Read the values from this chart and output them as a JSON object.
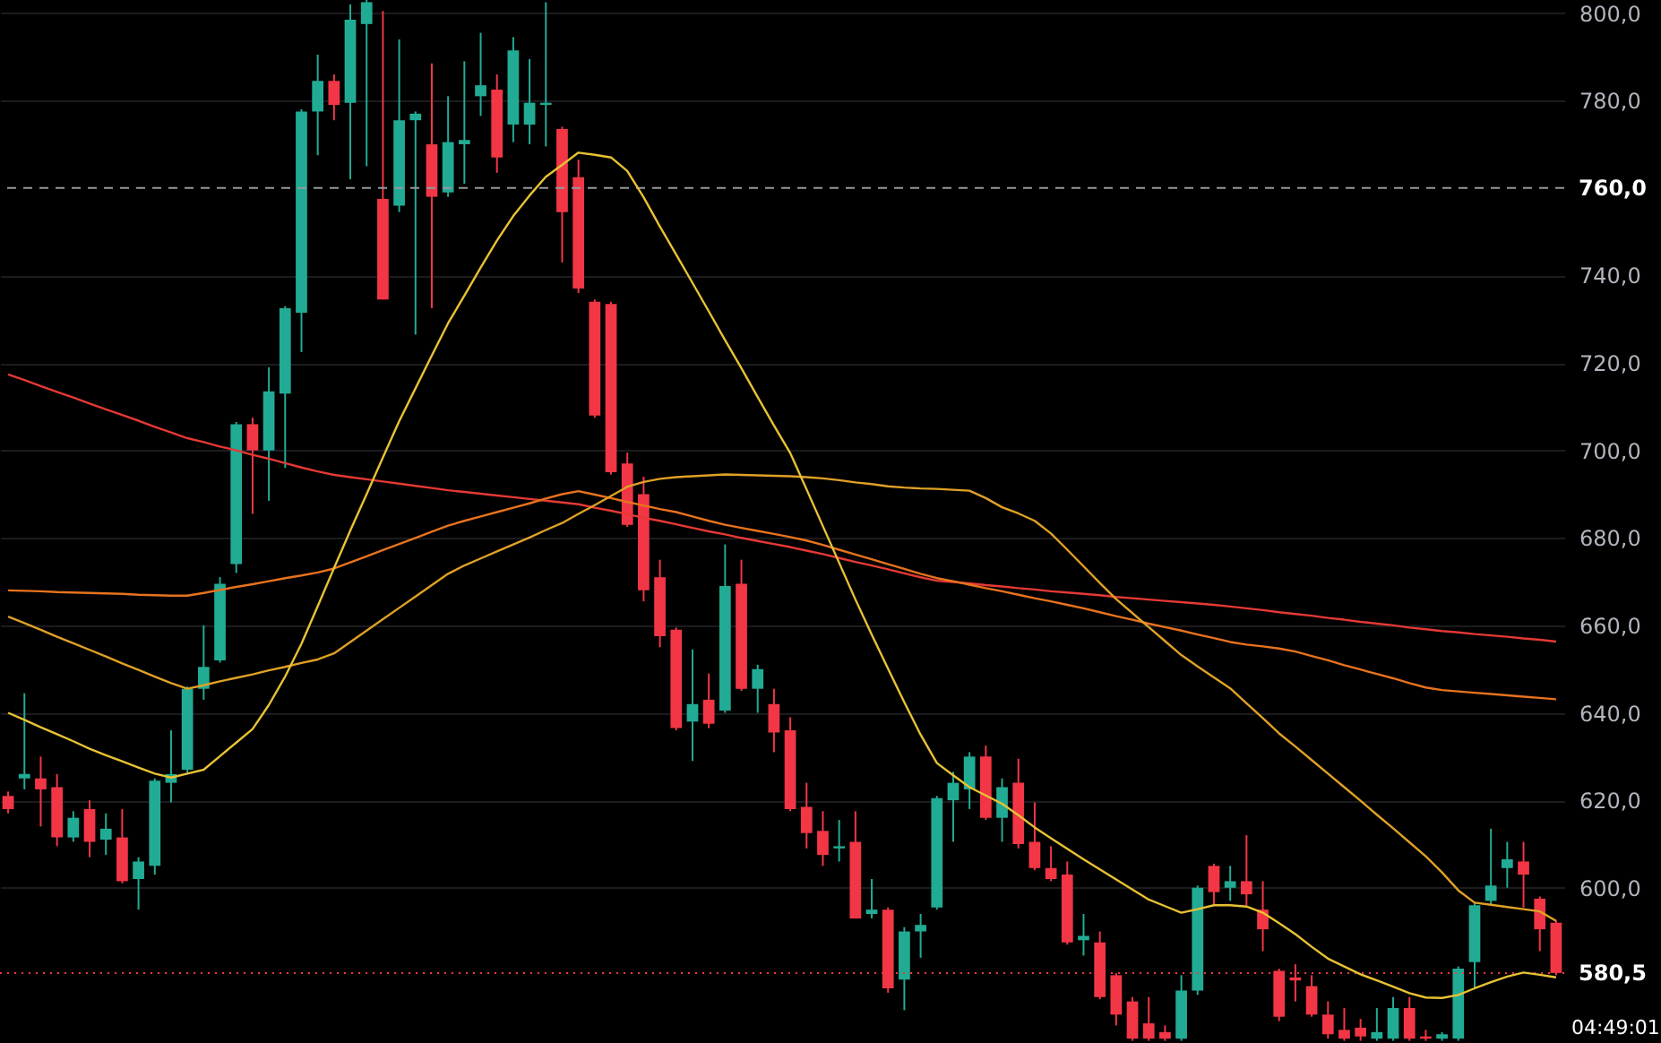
{
  "chart_data": {
    "type": "candlestick",
    "categories": [
      null,
      null,
      null,
      null,
      null,
      null,
      null,
      null,
      null,
      null,
      null,
      null,
      null,
      null,
      null,
      null,
      null,
      null,
      null,
      null,
      null,
      null,
      null,
      null,
      null,
      null,
      null,
      null,
      null,
      null,
      null,
      null,
      null,
      null,
      null,
      null,
      null,
      null,
      null,
      null,
      null,
      null,
      null,
      null,
      null,
      null,
      null,
      null,
      null,
      null,
      null,
      null,
      null,
      null,
      null,
      null,
      null,
      null,
      null,
      null,
      null,
      null,
      null,
      null,
      null,
      null,
      null,
      null,
      null,
      null,
      null,
      null,
      null,
      null,
      null,
      null,
      null,
      null,
      null,
      null,
      null,
      null,
      null,
      null,
      null,
      null,
      null,
      null,
      null,
      null,
      null,
      null,
      null,
      null,
      null,
      null
    ],
    "ohlc": [
      [
        621,
        622,
        617,
        618
      ],
      [
        625,
        644.5,
        622.5,
        626
      ],
      [
        625,
        630,
        614,
        622.5
      ],
      [
        623,
        626,
        609.5,
        611.5
      ],
      [
        611.5,
        617.5,
        610.5,
        616
      ],
      [
        618,
        620,
        607,
        610.5
      ],
      [
        611,
        617,
        607.5,
        613.5
      ],
      [
        611.5,
        618,
        601,
        601.5
      ],
      [
        602,
        607,
        595,
        606
      ],
      [
        605,
        625,
        603,
        624.5
      ],
      [
        624,
        636,
        619.5,
        626
      ],
      [
        627,
        646,
        626,
        645.5
      ],
      [
        645.5,
        660,
        643,
        650.5
      ],
      [
        652,
        671,
        651.5,
        669.5
      ],
      [
        674,
        706.5,
        672,
        706
      ],
      [
        706,
        707.5,
        685.5,
        700
      ],
      [
        700,
        719,
        688.5,
        713.5
      ],
      [
        713,
        733,
        696,
        732.5
      ],
      [
        731.5,
        778,
        722.5,
        777.5
      ],
      [
        777.5,
        790.5,
        767.5,
        784.5
      ],
      [
        784.5,
        786,
        775.5,
        779
      ],
      [
        779.5,
        802,
        762,
        798.5
      ],
      [
        797.5,
        803,
        765,
        802.5
      ],
      [
        757.5,
        800.5,
        734.5,
        734.5
      ],
      [
        756,
        794,
        754.5,
        775.5
      ],
      [
        775.5,
        777.5,
        726.5,
        777
      ],
      [
        770,
        788.5,
        732.5,
        758
      ],
      [
        759,
        781,
        758,
        770.5
      ],
      [
        770,
        789,
        761,
        771
      ],
      [
        781,
        795.5,
        776.5,
        783.5
      ],
      [
        782.5,
        786,
        763.5,
        767
      ],
      [
        774.5,
        794.5,
        770.5,
        791.5
      ],
      [
        774.5,
        789.5,
        770,
        779.5
      ],
      [
        779,
        802.5,
        769.5,
        779.5
      ],
      [
        773.5,
        774,
        743,
        754.5
      ],
      [
        762.5,
        766.5,
        736,
        737
      ],
      [
        734,
        734.5,
        707.5,
        708
      ],
      [
        733.5,
        734,
        694.5,
        695
      ],
      [
        697,
        699.5,
        682.5,
        683
      ],
      [
        690,
        694,
        665.5,
        668
      ],
      [
        671,
        675,
        655,
        657.5
      ],
      [
        659,
        659.5,
        636,
        636.5
      ],
      [
        638,
        654.5,
        629,
        642
      ],
      [
        643,
        649,
        636.5,
        637.5
      ],
      [
        640.5,
        678.5,
        640,
        669
      ],
      [
        669.5,
        675,
        645,
        645.5
      ],
      [
        645.5,
        651,
        640,
        650
      ],
      [
        642,
        645.5,
        631,
        635.5
      ],
      [
        636,
        639,
        617.5,
        618
      ],
      [
        618.5,
        624,
        609,
        612.5
      ],
      [
        613,
        617.5,
        605,
        607.5
      ],
      [
        609,
        615.5,
        606,
        609.5
      ],
      [
        610.5,
        617.5,
        593,
        593
      ],
      [
        594,
        602,
        593,
        595
      ],
      [
        595,
        595.5,
        576,
        577
      ],
      [
        579,
        591,
        572,
        590
      ],
      [
        590,
        594,
        584,
        591.5
      ],
      [
        595.5,
        621,
        595,
        620.5
      ],
      [
        620,
        626.5,
        610.5,
        624
      ],
      [
        622.5,
        631,
        618,
        630
      ],
      [
        630,
        632.5,
        615.5,
        616
      ],
      [
        616,
        625,
        610.5,
        623
      ],
      [
        624,
        629.5,
        609,
        610
      ],
      [
        610.5,
        619.5,
        604,
        604.5
      ],
      [
        604.5,
        609.5,
        601.5,
        602
      ],
      [
        603,
        606,
        587,
        587.5
      ],
      [
        588,
        594,
        584.5,
        589
      ],
      [
        587.5,
        590,
        574.5,
        575
      ],
      [
        580,
        580.5,
        568.5,
        571
      ],
      [
        574,
        575,
        565,
        565.5
      ],
      [
        569,
        575,
        565,
        565.5
      ],
      [
        567,
        568.5,
        565,
        565.5
      ],
      [
        565.5,
        580,
        565,
        576.5
      ],
      [
        576.5,
        600.5,
        575.5,
        600
      ],
      [
        605,
        605.5,
        596,
        599
      ],
      [
        600,
        605,
        597,
        601.5
      ],
      [
        601.5,
        612,
        596,
        598.5
      ],
      [
        595,
        601.5,
        585.5,
        590.5
      ],
      [
        581,
        581.5,
        569.5,
        570.5
      ],
      [
        579.5,
        582.5,
        574,
        578.8
      ],
      [
        577.5,
        580,
        570.5,
        571
      ],
      [
        571,
        574,
        565.5,
        566.5
      ],
      [
        567.5,
        572.5,
        565,
        565.5
      ],
      [
        568,
        570,
        565,
        566
      ],
      [
        565.5,
        572.5,
        565,
        567
      ],
      [
        565.5,
        575,
        565,
        572.5
      ],
      [
        572.5,
        575,
        565,
        565.5
      ],
      [
        566,
        567.5,
        565,
        565.5
      ],
      [
        565.5,
        567,
        565,
        566.5
      ],
      [
        565.5,
        582,
        565,
        581.5
      ],
      [
        583,
        596.5,
        577,
        596
      ],
      [
        597,
        613.5,
        596,
        600.5
      ],
      [
        604.5,
        610.5,
        600,
        606.5
      ],
      [
        606,
        610.5,
        595.5,
        603
      ],
      [
        597.5,
        598,
        585.5,
        590.5
      ],
      [
        592,
        592.5,
        580,
        580.5
      ]
    ],
    "colors": [
      "#f23645",
      "#22ab94",
      "#f23645",
      "#f23645",
      "#22ab94",
      "#f23645",
      "#22ab94",
      "#f23645",
      "#22ab94",
      "#22ab94",
      "#22ab94",
      "#22ab94",
      "#22ab94",
      "#22ab94",
      "#22ab94",
      "#f23645",
      "#22ab94",
      "#22ab94",
      "#22ab94",
      "#22ab94",
      "#f23645",
      "#22ab94",
      "#22ab94",
      "#f23645",
      "#22ab94",
      "#22ab94",
      "#f23645",
      "#22ab94",
      "#22ab94",
      "#22ab94",
      "#f23645",
      "#22ab94",
      "#22ab94",
      "#22ab94",
      "#f23645",
      "#f23645",
      "#f23645",
      "#f23645",
      "#f23645",
      "#f23645",
      "#f23645",
      "#f23645",
      "#22ab94",
      "#f23645",
      "#22ab94",
      "#f23645",
      "#22ab94",
      "#f23645",
      "#f23645",
      "#f23645",
      "#f23645",
      "#22ab94",
      "#f23645",
      "#22ab94",
      "#f23645",
      "#22ab94",
      "#22ab94",
      "#22ab94",
      "#22ab94",
      "#22ab94",
      "#f23645",
      "#22ab94",
      "#f23645",
      "#f23645",
      "#f23645",
      "#f23645",
      "#22ab94",
      "#f23645",
      "#f23645",
      "#f23645",
      "#f23645",
      "#f23645",
      "#22ab94",
      "#22ab94",
      "#f23645",
      "#22ab94",
      "#f23645",
      "#f23645",
      "#f23645",
      "#f23645",
      "#f23645",
      "#f23645",
      "#f23645",
      "#f23645",
      "#22ab94",
      "#22ab94",
      "#f23645",
      "#f23645",
      "#22ab94",
      "#22ab94",
      "#22ab94",
      "#22ab94",
      "#22ab94",
      "#f23645",
      "#f23645",
      "#f23645"
    ],
    "series": [
      {
        "type": "line",
        "color": "#e53935",
        "values": [
          717.4,
          716.1,
          714.7,
          713.4,
          712.1,
          710.7,
          709.4,
          708.1,
          706.8,
          705.4,
          704.1,
          702.8,
          701.9,
          700.9,
          700,
          699,
          698.1,
          697.1,
          696.1,
          695.2,
          694.4,
          693.9,
          693.4,
          692.9,
          692.4,
          691.9,
          691.4,
          690.9,
          690.5,
          690.1,
          689.7,
          689.3,
          688.9,
          688.5,
          688.1,
          687.7,
          686.9,
          686.2,
          685.4,
          684.6,
          683.9,
          683.1,
          682.3,
          681.5,
          680.8,
          680,
          679.3,
          678.6,
          677.9,
          677.1,
          676.3,
          675.4,
          674.5,
          673.7,
          672.8,
          671.9,
          671,
          670.2,
          669.9,
          669.6,
          669.2,
          668.9,
          668.5,
          668.2,
          667.8,
          667.5,
          667.2,
          666.9,
          666.5,
          666.2,
          665.9,
          665.6,
          665.3,
          665,
          664.7,
          664.3,
          663.9,
          663.5,
          663,
          662.6,
          662.2,
          661.7,
          661.3,
          660.8,
          660.4,
          660,
          659.5,
          659.1,
          658.7,
          658.4,
          658,
          657.7,
          657.4,
          657,
          656.7,
          656.3
        ]
      },
      {
        "type": "line",
        "color": "#e8731e",
        "values": [
          668,
          667.9,
          667.8,
          667.6,
          667.5,
          667.4,
          667.3,
          667.2,
          667,
          666.9,
          666.8,
          666.8,
          667.4,
          668.1,
          668.8,
          669.4,
          670.1,
          670.8,
          671.4,
          672.1,
          673,
          674.4,
          675.8,
          677.2,
          678.6,
          680,
          681.4,
          682.8,
          683.9,
          684.9,
          685.9,
          686.9,
          687.9,
          689,
          690,
          690.7,
          689.9,
          689.1,
          688.2,
          687.4,
          686.6,
          685.9,
          684.9,
          683.9,
          683,
          682.3,
          681.6,
          680.9,
          680.2,
          679.4,
          678.4,
          677.3,
          676.2,
          675.1,
          674,
          672.9,
          671.8,
          670.8,
          670.1,
          669.3,
          668.5,
          667.8,
          667,
          666.2,
          665.5,
          664.7,
          663.9,
          663,
          662.1,
          661.3,
          660.4,
          659.6,
          658.8,
          657.9,
          657.1,
          656.2,
          655.6,
          655.2,
          654.7,
          654,
          653,
          652,
          650.9,
          649.9,
          648.9,
          647.9,
          646.8,
          645.8,
          645.2,
          644.9,
          644.6,
          644.3,
          644,
          643.7,
          643.4,
          643.1
        ]
      },
      {
        "type": "line",
        "color": "#e0a126",
        "values": [
          662,
          660.5,
          659,
          657.4,
          655.9,
          654.4,
          652.9,
          651.3,
          649.8,
          648.3,
          646.8,
          645.5,
          646.3,
          647.2,
          648,
          648.8,
          649.7,
          650.5,
          651.4,
          652.2,
          653.6,
          656.2,
          658.8,
          661.4,
          664,
          666.6,
          669.2,
          671.8,
          673.7,
          675.3,
          676.9,
          678.5,
          680.1,
          681.8,
          683.4,
          685.5,
          687.5,
          689.6,
          691.7,
          692.8,
          693.5,
          693.9,
          694.1,
          694.3,
          694.5,
          694.4,
          694.3,
          694.2,
          694.1,
          693.9,
          693.6,
          693.2,
          692.7,
          692.3,
          691.8,
          691.5,
          691.3,
          691.2,
          691,
          690.8,
          689.1,
          687,
          685.6,
          683.9,
          681,
          677.3,
          673.5,
          669.7,
          666,
          662.8,
          659.6,
          656.4,
          653.2,
          650.6,
          648.1,
          645.6,
          642.2,
          638.8,
          635.3,
          632.3,
          629.2,
          626.1,
          623,
          619.9,
          616.7,
          613.6,
          610.4,
          607.2,
          603.5,
          599.4,
          596.6,
          596.1,
          595.6,
          595.1,
          594.6,
          592.4
        ]
      },
      {
        "type": "line",
        "color": "#e8c234",
        "values": [
          640,
          638.4,
          636.7,
          635.1,
          633.5,
          631.8,
          630.3,
          628.9,
          627.5,
          626.1,
          625.2,
          626.1,
          627,
          630.1,
          633.2,
          636.3,
          641.8,
          648.3,
          655.8,
          664.4,
          673.1,
          681.7,
          690,
          698.4,
          706.7,
          714.2,
          721.7,
          729.1,
          735.4,
          741.8,
          748,
          753.6,
          758.3,
          762.6,
          765.3,
          768.1,
          767.6,
          767,
          763.9,
          757.9,
          751.2,
          744.8,
          738.3,
          731.8,
          725.2,
          718.8,
          712.2,
          705.7,
          699.4,
          691.1,
          682.7,
          674.3,
          665.9,
          657.9,
          650.1,
          642.4,
          635,
          628.5,
          625.7,
          623,
          621.1,
          619.2,
          616.6,
          613.8,
          611.3,
          608.9,
          606.5,
          604.2,
          601.9,
          599.6,
          597.3,
          595.8,
          594.3,
          595.1,
          596,
          596,
          595.7,
          594.3,
          591.9,
          589.4,
          586.5,
          583.8,
          582,
          580.2,
          578.8,
          577.4,
          575.9,
          574.9,
          574.8,
          575.5,
          577,
          578.4,
          579.7,
          580.6,
          580.1,
          579.5
        ]
      }
    ],
    "ylim": [
      564.5,
      803
    ],
    "yticks": [
      {
        "value": 600,
        "label": "600,0"
      },
      {
        "value": 620,
        "label": "620,0"
      },
      {
        "value": 640,
        "label": "640,0"
      },
      {
        "value": 660,
        "label": "660,0"
      },
      {
        "value": 680,
        "label": "680,0"
      },
      {
        "value": 700,
        "label": "700,0"
      },
      {
        "value": 720,
        "label": "720,0"
      },
      {
        "value": 740,
        "label": "740,0"
      },
      {
        "value": 780,
        "label": "780,0"
      },
      {
        "value": 800,
        "label": "800,0"
      }
    ],
    "ref_lines": [
      {
        "axis": "y",
        "value": 760,
        "label": "760,0",
        "color": "#9598a1",
        "line_style": "dashed"
      },
      {
        "axis": "y",
        "value": 580.5,
        "label": "580,5",
        "color": "#f23645",
        "line_style": "dotted"
      }
    ],
    "annotations": [
      "04:49:01"
    ],
    "grid": "y",
    "tick_labels": "y"
  }
}
